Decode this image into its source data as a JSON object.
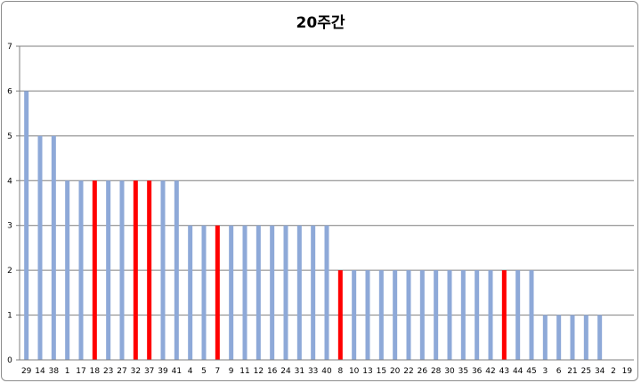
{
  "chart_data": {
    "type": "bar",
    "title": "20주간",
    "categories": [
      "29",
      "14",
      "38",
      "1",
      "17",
      "18",
      "23",
      "27",
      "32",
      "37",
      "39",
      "41",
      "4",
      "5",
      "7",
      "9",
      "11",
      "12",
      "16",
      "24",
      "31",
      "33",
      "40",
      "8",
      "10",
      "13",
      "15",
      "20",
      "22",
      "26",
      "28",
      "30",
      "35",
      "36",
      "42",
      "43",
      "44",
      "45",
      "3",
      "6",
      "21",
      "25",
      "34",
      "2",
      "19"
    ],
    "values": [
      6,
      5,
      5,
      4,
      4,
      4,
      4,
      4,
      4,
      4,
      4,
      4,
      3,
      3,
      3,
      3,
      3,
      3,
      3,
      3,
      3,
      3,
      3,
      2,
      2,
      2,
      2,
      2,
      2,
      2,
      2,
      2,
      2,
      2,
      2,
      2,
      2,
      2,
      1,
      1,
      1,
      1,
      1,
      0,
      0
    ],
    "highlighted": [
      "18",
      "32",
      "37",
      "7",
      "8",
      "43"
    ],
    "ylim": [
      0,
      7
    ],
    "yticks": [
      0,
      1,
      2,
      3,
      4,
      5,
      6,
      7
    ],
    "grid": true,
    "legend": "none",
    "xlabel": "",
    "ylabel": "",
    "colors": {
      "bar": "#8EA9D8",
      "highlight": "#FF0000",
      "grid": "#7f7f7f",
      "axis": "#7f7f7f"
    }
  }
}
